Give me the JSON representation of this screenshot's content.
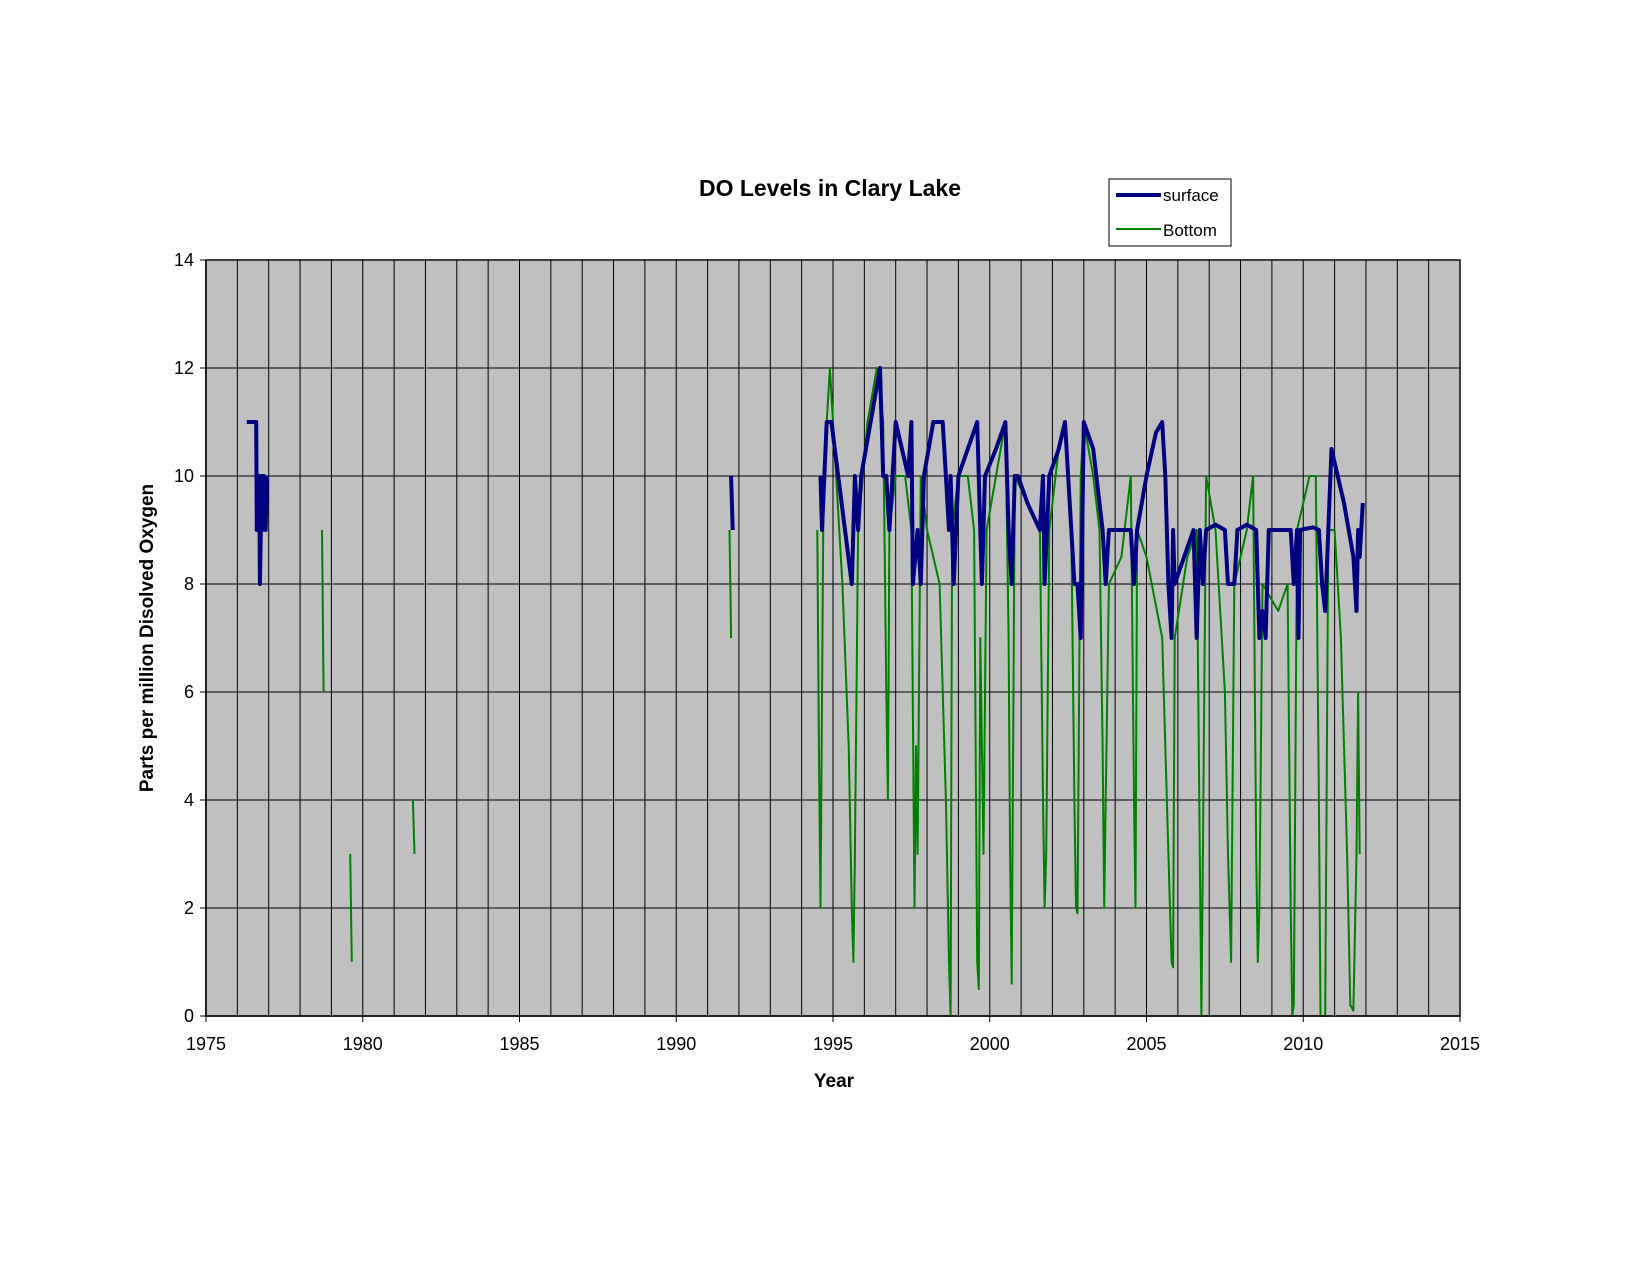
{
  "chart_data": {
    "type": "line",
    "title": "DO Levels in Clary Lake",
    "xlabel": "Year",
    "ylabel": "Parts per million Disolved Oxygen",
    "xlim": [
      1975,
      2015
    ],
    "ylim": [
      0,
      14
    ],
    "x_ticks": [
      1975,
      1980,
      1985,
      1990,
      1995,
      2000,
      2005,
      2010,
      2015
    ],
    "y_ticks": [
      0,
      2,
      4,
      6,
      8,
      10,
      12,
      14
    ],
    "grid": true,
    "legend_position": "top-right",
    "plot_background": "#c0c0c0",
    "series": [
      {
        "name": "surface",
        "color": "#000080",
        "segments": [
          [
            [
              1976.3,
              11
            ],
            [
              1976.6,
              11
            ],
            [
              1976.62,
              9
            ],
            [
              1976.7,
              10
            ],
            [
              1976.72,
              8
            ],
            [
              1976.78,
              10
            ],
            [
              1976.8,
              9
            ],
            [
              1976.85,
              10
            ],
            [
              1976.9,
              9
            ],
            [
              1976.95,
              10
            ]
          ],
          [
            [
              1991.75,
              10
            ],
            [
              1991.8,
              9
            ]
          ],
          [
            [
              1994.6,
              10
            ],
            [
              1994.65,
              9
            ],
            [
              1994.8,
              11
            ],
            [
              1994.95,
              11
            ],
            [
              1995.6,
              8
            ],
            [
              1995.7,
              10
            ],
            [
              1995.8,
              9
            ],
            [
              1995.9,
              10
            ],
            [
              1996.2,
              11
            ],
            [
              1996.5,
              12
            ],
            [
              1996.6,
              10
            ],
            [
              1996.7,
              10
            ],
            [
              1996.8,
              9
            ],
            [
              1997.0,
              11
            ],
            [
              1997.4,
              10
            ],
            [
              1997.5,
              11
            ],
            [
              1997.55,
              8
            ],
            [
              1997.7,
              9
            ],
            [
              1997.8,
              8
            ],
            [
              1997.9,
              10
            ],
            [
              1998.2,
              11
            ],
            [
              1998.5,
              11
            ],
            [
              1998.6,
              10
            ],
            [
              1998.7,
              9
            ],
            [
              1998.75,
              10
            ],
            [
              1998.85,
              8
            ],
            [
              1999.0,
              10
            ],
            [
              1999.3,
              10.5
            ],
            [
              1999.6,
              11
            ],
            [
              1999.7,
              9
            ],
            [
              1999.75,
              8
            ],
            [
              1999.85,
              10
            ],
            [
              2000.2,
              10.5
            ],
            [
              2000.5,
              11
            ],
            [
              2000.6,
              9
            ],
            [
              2000.7,
              8
            ],
            [
              2000.8,
              10
            ],
            [
              2000.9,
              10
            ],
            [
              2001.2,
              9.5
            ],
            [
              2001.6,
              9
            ],
            [
              2001.7,
              10
            ],
            [
              2001.75,
              8
            ],
            [
              2001.9,
              10
            ],
            [
              2002.2,
              10.5
            ],
            [
              2002.4,
              11
            ],
            [
              2002.6,
              9
            ],
            [
              2002.7,
              8
            ],
            [
              2002.8,
              8
            ],
            [
              2002.9,
              7
            ],
            [
              2003.0,
              11
            ],
            [
              2003.3,
              10.5
            ],
            [
              2003.6,
              9
            ],
            [
              2003.7,
              8
            ],
            [
              2003.8,
              9
            ],
            [
              2004.5,
              9
            ],
            [
              2004.6,
              8
            ],
            [
              2004.7,
              9
            ],
            [
              2005.0,
              10
            ],
            [
              2005.3,
              10.8
            ],
            [
              2005.5,
              11
            ],
            [
              2005.6,
              10
            ],
            [
              2005.7,
              8
            ],
            [
              2005.8,
              7
            ],
            [
              2005.85,
              9
            ],
            [
              2005.9,
              8
            ],
            [
              2006.2,
              8.5
            ],
            [
              2006.5,
              9
            ],
            [
              2006.6,
              7
            ],
            [
              2006.7,
              9
            ],
            [
              2006.8,
              8
            ],
            [
              2006.9,
              9
            ],
            [
              2007.2,
              9.1
            ],
            [
              2007.5,
              9
            ],
            [
              2007.6,
              8
            ],
            [
              2007.7,
              8
            ],
            [
              2007.8,
              8
            ],
            [
              2007.9,
              9
            ],
            [
              2008.2,
              9.1
            ],
            [
              2008.5,
              9
            ],
            [
              2008.6,
              7
            ],
            [
              2008.7,
              7.5
            ],
            [
              2008.8,
              7
            ],
            [
              2008.9,
              9
            ],
            [
              2009.3,
              9
            ],
            [
              2009.6,
              9
            ],
            [
              2009.7,
              8
            ],
            [
              2009.8,
              9
            ],
            [
              2009.85,
              7
            ],
            [
              2009.9,
              9
            ],
            [
              2010.3,
              9.05
            ],
            [
              2010.5,
              9
            ],
            [
              2010.6,
              8
            ],
            [
              2010.7,
              7.5
            ],
            [
              2010.8,
              9
            ],
            [
              2010.9,
              10.5
            ],
            [
              2011.1,
              10
            ],
            [
              2011.3,
              9.5
            ],
            [
              2011.6,
              8.5
            ],
            [
              2011.7,
              7.5
            ],
            [
              2011.75,
              9
            ],
            [
              2011.8,
              8.5
            ],
            [
              2011.9,
              9.5
            ]
          ]
        ]
      },
      {
        "name": "Bottom",
        "color": "#008000",
        "segments": [
          [
            [
              1978.7,
              9
            ],
            [
              1978.75,
              6
            ]
          ],
          [
            [
              1979.6,
              3
            ],
            [
              1979.65,
              1
            ]
          ],
          [
            [
              1981.6,
              4
            ],
            [
              1981.65,
              3
            ]
          ],
          [
            [
              1991.7,
              9
            ],
            [
              1991.75,
              7
            ]
          ],
          [
            [
              1994.5,
              9
            ],
            [
              1994.55,
              5
            ],
            [
              1994.6,
              2
            ],
            [
              1994.7,
              10
            ],
            [
              1994.9,
              12
            ],
            [
              1995.0,
              11
            ],
            [
              1995.3,
              8
            ],
            [
              1995.5,
              5
            ],
            [
              1995.6,
              2
            ],
            [
              1995.65,
              1
            ],
            [
              1995.7,
              3
            ],
            [
              1995.8,
              9
            ],
            [
              1996.1,
              11
            ],
            [
              1996.4,
              12
            ],
            [
              1996.6,
              11
            ],
            [
              1996.7,
              6
            ],
            [
              1996.75,
              4
            ],
            [
              1996.8,
              9
            ],
            [
              1997.0,
              10
            ],
            [
              1997.3,
              10
            ],
            [
              1997.5,
              9
            ],
            [
              1997.6,
              2
            ],
            [
              1997.65,
              5
            ],
            [
              1997.7,
              3
            ],
            [
              1997.8,
              10
            ],
            [
              1998.0,
              9
            ],
            [
              1998.4,
              8
            ],
            [
              1998.6,
              4
            ],
            [
              1998.7,
              1
            ],
            [
              1998.75,
              0
            ],
            [
              1998.8,
              9
            ],
            [
              1999.0,
              10
            ],
            [
              1999.3,
              10
            ],
            [
              1999.5,
              9
            ],
            [
              1999.6,
              1
            ],
            [
              1999.65,
              0.5
            ],
            [
              1999.7,
              7
            ],
            [
              1999.8,
              3
            ],
            [
              1999.9,
              9
            ],
            [
              2000.2,
              10
            ],
            [
              2000.5,
              11
            ],
            [
              2000.6,
              7
            ],
            [
              2000.65,
              3
            ],
            [
              2000.7,
              0.6
            ],
            [
              2000.8,
              10
            ],
            [
              2001.6,
              9
            ],
            [
              2001.7,
              4
            ],
            [
              2001.75,
              2
            ],
            [
              2001.8,
              3
            ],
            [
              2001.9,
              9
            ],
            [
              2002.2,
              10.5
            ],
            [
              2002.4,
              11
            ],
            [
              2002.6,
              9
            ],
            [
              2002.7,
              4
            ],
            [
              2002.75,
              2
            ],
            [
              2002.8,
              1.9
            ],
            [
              2002.9,
              10
            ],
            [
              2003.0,
              11
            ],
            [
              2003.3,
              10
            ],
            [
              2003.5,
              9
            ],
            [
              2003.6,
              5
            ],
            [
              2003.65,
              2
            ],
            [
              2003.7,
              4
            ],
            [
              2003.8,
              8
            ],
            [
              2004.2,
              8.5
            ],
            [
              2004.5,
              10
            ],
            [
              2004.6,
              4
            ],
            [
              2004.65,
              2
            ],
            [
              2004.7,
              9
            ],
            [
              2005.0,
              8.5
            ],
            [
              2005.5,
              7
            ],
            [
              2005.7,
              3
            ],
            [
              2005.8,
              1
            ],
            [
              2005.85,
              0.9
            ],
            [
              2005.9,
              7
            ],
            [
              2006.3,
              8.5
            ],
            [
              2006.6,
              9
            ],
            [
              2006.7,
              3
            ],
            [
              2006.75,
              0
            ],
            [
              2006.8,
              3
            ],
            [
              2006.9,
              10
            ],
            [
              2007.2,
              9
            ],
            [
              2007.5,
              6
            ],
            [
              2007.6,
              3
            ],
            [
              2007.65,
              2
            ],
            [
              2007.7,
              1
            ],
            [
              2007.8,
              8
            ],
            [
              2008.2,
              9
            ],
            [
              2008.4,
              10
            ],
            [
              2008.5,
              3
            ],
            [
              2008.55,
              1
            ],
            [
              2008.6,
              2
            ],
            [
              2008.7,
              8
            ],
            [
              2009.2,
              7.5
            ],
            [
              2009.5,
              8
            ],
            [
              2009.6,
              2
            ],
            [
              2009.65,
              0
            ],
            [
              2009.7,
              0.2
            ],
            [
              2009.8,
              9
            ],
            [
              2010.2,
              10
            ],
            [
              2010.4,
              10
            ],
            [
              2010.5,
              4
            ],
            [
              2010.55,
              0
            ],
            [
              2010.7,
              0
            ],
            [
              2010.8,
              9
            ],
            [
              2011.0,
              9
            ],
            [
              2011.2,
              7
            ],
            [
              2011.4,
              3
            ],
            [
              2011.5,
              0.2
            ],
            [
              2011.6,
              0.1
            ],
            [
              2011.7,
              3
            ],
            [
              2011.75,
              6
            ],
            [
              2011.8,
              3
            ]
          ]
        ]
      }
    ]
  }
}
